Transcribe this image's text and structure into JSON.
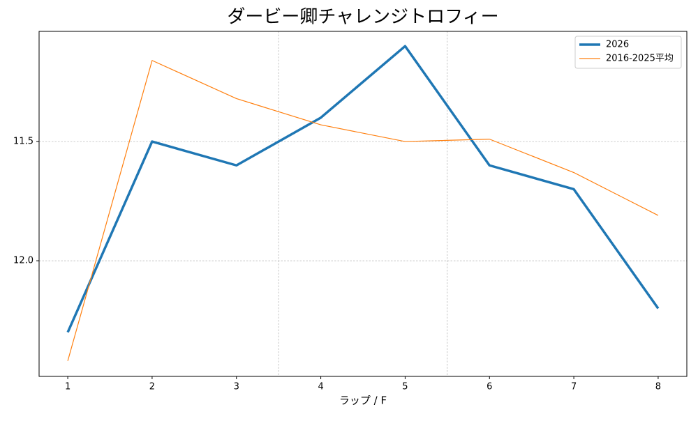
{
  "chart_data": {
    "type": "line",
    "title": "ダービー卿チャレンジトロフィー",
    "x_label": "ラップ / F",
    "x": [
      1,
      2,
      3,
      4,
      5,
      6,
      7,
      8
    ],
    "series": [
      {
        "name": "2026",
        "color": "#1f77b4",
        "width": 3.5,
        "values": [
          12.3,
          11.5,
          11.6,
          11.4,
          11.1,
          11.6,
          11.7,
          12.2
        ]
      },
      {
        "name": "2016-2025平均",
        "color": "#ff7f0e",
        "width": 1.2,
        "values": [
          12.42,
          11.16,
          11.32,
          11.43,
          11.5,
          11.49,
          11.63,
          11.81
        ]
      }
    ],
    "xlim": [
      0.66,
      8.34
    ],
    "xticks": [
      1,
      2,
      3,
      4,
      5,
      6,
      7,
      8
    ],
    "ylim": [
      11.038,
      12.485
    ],
    "yticks": [
      {
        "value": 11.5,
        "label": "11.5"
      },
      {
        "value": 12.0,
        "label": "12.0"
      }
    ],
    "y_inverted": true,
    "grid": true,
    "vlines": [
      3.5,
      5.5
    ],
    "legend": "upper right"
  }
}
